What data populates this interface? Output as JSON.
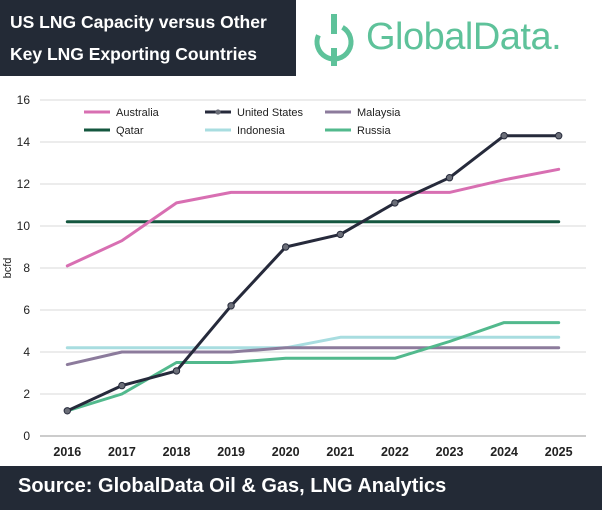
{
  "header": {
    "title_line1": "US LNG Capacity versus Other",
    "title_line2": "Key LNG Exporting Countries",
    "logo_text": "GlobalData."
  },
  "footer": {
    "source": "Source:  GlobalData Oil & Gas, LNG Analytics"
  },
  "colors": {
    "header_bg": "#232a36",
    "logo": "#5ec29a",
    "Australia": "#d86fb2",
    "United States": "#262a3b",
    "Malaysia": "#8c7b9c",
    "Qatar": "#14573f",
    "Indonesia": "#a8dde0",
    "Russia": "#52b98d"
  },
  "chart_data": {
    "type": "line",
    "x": [
      "2016",
      "2017",
      "2018",
      "2019",
      "2020",
      "2021",
      "2022",
      "2023",
      "2024",
      "2025"
    ],
    "ylabel": "bcfd",
    "xlabel": "",
    "ylim": [
      0,
      16
    ],
    "yticks": [
      0,
      2,
      4,
      6,
      8,
      10,
      12,
      14,
      16
    ],
    "grid": "horizontal",
    "legend_position": "top",
    "series": [
      {
        "name": "Australia",
        "values": [
          8.1,
          9.3,
          11.1,
          11.6,
          11.6,
          11.6,
          11.6,
          11.6,
          12.2,
          12.7
        ],
        "markers": false
      },
      {
        "name": "United States",
        "values": [
          1.2,
          2.4,
          3.1,
          6.2,
          9.0,
          9.6,
          11.1,
          12.3,
          14.3,
          14.3
        ],
        "markers": true
      },
      {
        "name": "Malaysia",
        "values": [
          3.4,
          4.0,
          4.0,
          4.0,
          4.2,
          4.2,
          4.2,
          4.2,
          4.2,
          4.2
        ],
        "markers": false
      },
      {
        "name": "Qatar",
        "values": [
          10.2,
          10.2,
          10.2,
          10.2,
          10.2,
          10.2,
          10.2,
          10.2,
          10.2,
          10.2
        ],
        "markers": false
      },
      {
        "name": "Indonesia",
        "values": [
          4.2,
          4.2,
          4.2,
          4.2,
          4.2,
          4.7,
          4.7,
          4.7,
          4.7,
          4.7
        ],
        "markers": false
      },
      {
        "name": "Russia",
        "values": [
          1.2,
          2.0,
          3.5,
          3.5,
          3.7,
          3.7,
          3.7,
          4.5,
          5.4,
          5.4
        ],
        "markers": false
      }
    ]
  }
}
